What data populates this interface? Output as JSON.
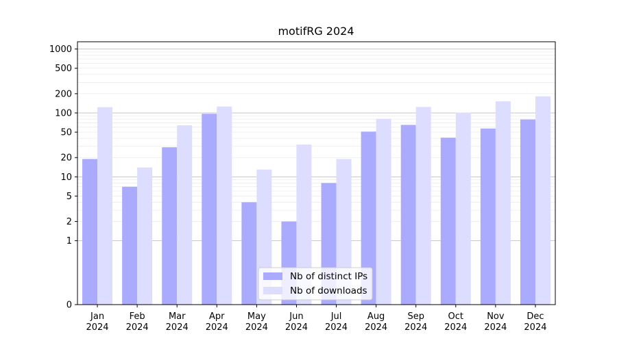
{
  "chart_data": {
    "type": "bar",
    "title": "motifRG 2024",
    "xlabel": "",
    "ylabel": "",
    "yscale": "symlog",
    "ylim": [
      0,
      1300
    ],
    "yticks": [
      0,
      1,
      2,
      5,
      10,
      20,
      50,
      100,
      200,
      500,
      1000
    ],
    "ytick_labels": [
      "0",
      "1",
      "2",
      "5",
      "10",
      "20",
      "50",
      "100",
      "200",
      "500",
      "1000"
    ],
    "categories": [
      [
        "Jan",
        "2024"
      ],
      [
        "Feb",
        "2024"
      ],
      [
        "Mar",
        "2024"
      ],
      [
        "Apr",
        "2024"
      ],
      [
        "May",
        "2024"
      ],
      [
        "Jun",
        "2024"
      ],
      [
        "Jul",
        "2024"
      ],
      [
        "Aug",
        "2024"
      ],
      [
        "Sep",
        "2024"
      ],
      [
        "Oct",
        "2024"
      ],
      [
        "Nov",
        "2024"
      ],
      [
        "Dec",
        "2024"
      ]
    ],
    "series": [
      {
        "name": "Nb of distinct IPs",
        "color": "#aaaaff",
        "values": [
          19,
          7,
          29,
          97,
          4,
          2,
          8,
          51,
          65,
          41,
          57,
          79
        ]
      },
      {
        "name": "Nb of downloads",
        "color": "#ddddff",
        "values": [
          123,
          14,
          64,
          126,
          13,
          32,
          19,
          81,
          124,
          101,
          152,
          182
        ]
      }
    ],
    "grid": true,
    "legend_position": "lower-center"
  }
}
